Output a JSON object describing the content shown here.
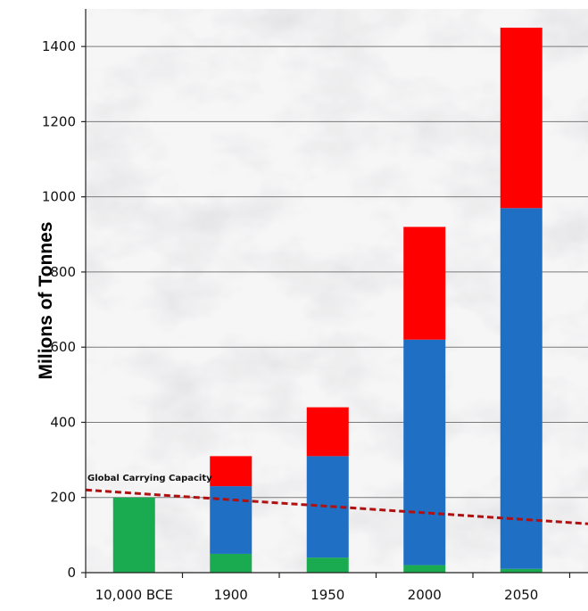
{
  "chart_data": {
    "type": "bar",
    "stacked": true,
    "title": "",
    "xlabel": "",
    "ylabel": "Milions of Tonnes",
    "categories": [
      "10,000 BCE",
      "1900",
      "1950",
      "2000",
      "2050"
    ],
    "series": [
      {
        "color": "#1aaa4f",
        "values": [
          200,
          50,
          40,
          20,
          10
        ]
      },
      {
        "color": "#1f6fc4",
        "values": [
          0,
          180,
          270,
          600,
          960
        ]
      },
      {
        "color": "#ff0000",
        "values": [
          0,
          80,
          130,
          300,
          480
        ]
      }
    ],
    "ylim": [
      0,
      1500
    ],
    "yticks": [
      0,
      200,
      400,
      600,
      800,
      1000,
      1200,
      1400
    ],
    "grid": true,
    "background": "marble texture",
    "reference_line": {
      "label": "Global Carrying Capacity",
      "color": "#b01010",
      "style": "dashed",
      "start_value": 220,
      "end_value": 130
    }
  }
}
